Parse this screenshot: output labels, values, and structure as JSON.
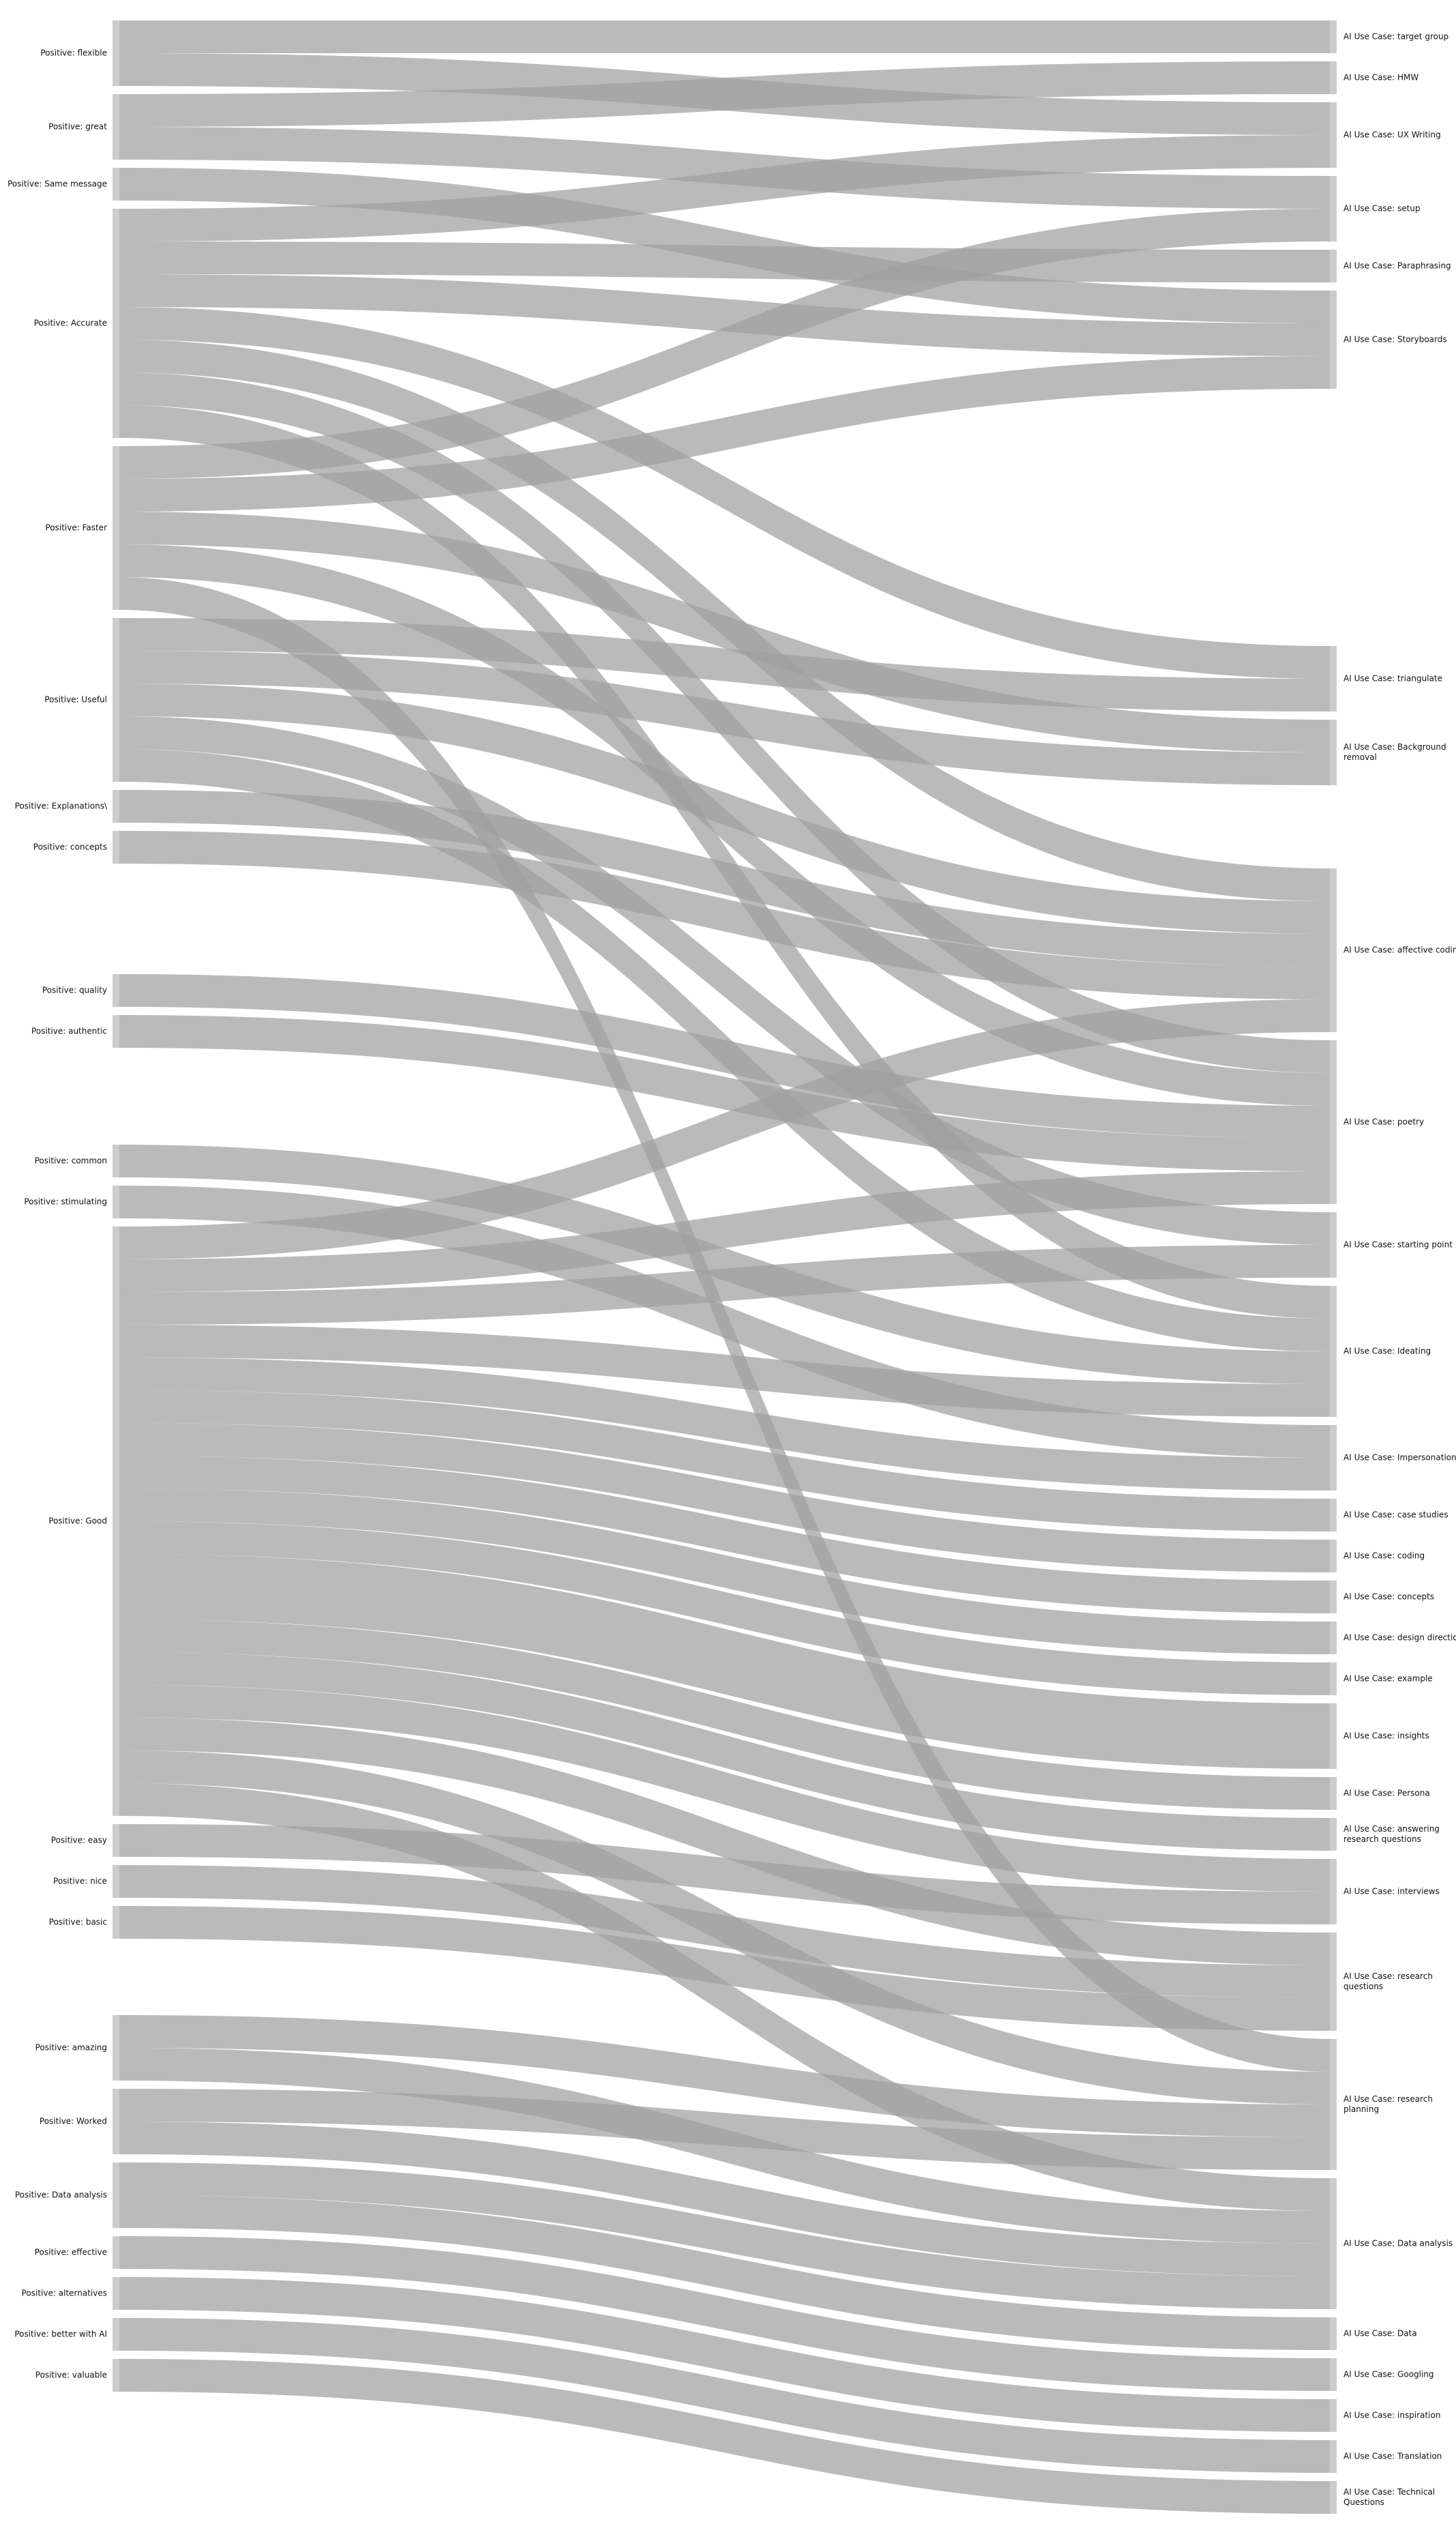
{
  "colors": {
    "node": "#cccccc",
    "link": "#a0a0a0",
    "background": "#ffffff"
  },
  "left_nodes": [
    {
      "id": "flexible",
      "label": "Positive: flexible",
      "value": 2
    },
    {
      "id": "great",
      "label": "Positive: great",
      "value": 2
    },
    {
      "id": "same_message",
      "label": "Positive: Same message",
      "value": 1
    },
    {
      "id": "accurate",
      "label": "Positive: Accurate",
      "value": 7
    },
    {
      "id": "faster",
      "label": "Positive: Faster",
      "value": 5
    },
    {
      "id": "useful",
      "label": "Positive: Useful",
      "value": 5
    },
    {
      "id": "explanations",
      "label": "Positive: Explanations\\",
      "value": 1
    },
    {
      "id": "concepts",
      "label": "Positive: concepts",
      "value": 1
    },
    {
      "id": "quality",
      "label": "Positive: quality",
      "value": 1
    },
    {
      "id": "authentic",
      "label": "Positive: authentic",
      "value": 1
    },
    {
      "id": "common",
      "label": "Positive: common",
      "value": 1
    },
    {
      "id": "stimulating",
      "label": "Positive: stimulating",
      "value": 1
    },
    {
      "id": "good",
      "label": "Positive: Good",
      "value": 18
    },
    {
      "id": "easy",
      "label": "Positive: easy",
      "value": 1
    },
    {
      "id": "nice",
      "label": "Positive: nice",
      "value": 1
    },
    {
      "id": "basic",
      "label": "Positive: basic",
      "value": 1
    },
    {
      "id": "amazing",
      "label": "Positive: amazing",
      "value": 2
    },
    {
      "id": "worked",
      "label": "Positive: Worked",
      "value": 2
    },
    {
      "id": "data_analysis_pos",
      "label": "Positive: Data analysis",
      "value": 2
    },
    {
      "id": "effective",
      "label": "Positive: effective",
      "value": 1
    },
    {
      "id": "alternatives",
      "label": "Positive: alternatives",
      "value": 1
    },
    {
      "id": "better_with_ai",
      "label": "Positive: better with AI",
      "value": 1
    },
    {
      "id": "valuable",
      "label": "Positive: valuable",
      "value": 1
    }
  ],
  "right_nodes": [
    {
      "id": "target_group",
      "label": [
        "AI Use Case: target group"
      ],
      "value": 1
    },
    {
      "id": "hmw",
      "label": [
        "AI Use Case: HMW"
      ],
      "value": 1
    },
    {
      "id": "ux_writing",
      "label": [
        "AI Use Case: UX Writing"
      ],
      "value": 2
    },
    {
      "id": "setup",
      "label": [
        "AI Use Case: setup"
      ],
      "value": 2
    },
    {
      "id": "paraphrasing",
      "label": [
        "AI Use Case: Paraphrasing"
      ],
      "value": 1
    },
    {
      "id": "storyboards",
      "label": [
        "AI Use Case: Storyboards"
      ],
      "value": 3
    },
    {
      "id": "triangulate",
      "label": [
        "AI Use Case: triangulate"
      ],
      "value": 2
    },
    {
      "id": "background_removal",
      "label": [
        "AI Use Case: Background",
        "removal"
      ],
      "value": 2
    },
    {
      "id": "affective_coding",
      "label": [
        "AI Use Case: affective coding"
      ],
      "value": 5
    },
    {
      "id": "poetry",
      "label": [
        "AI Use Case: poetry"
      ],
      "value": 5
    },
    {
      "id": "starting_point",
      "label": [
        "AI Use Case: starting point"
      ],
      "value": 2
    },
    {
      "id": "ideating",
      "label": [
        "AI Use Case: Ideating"
      ],
      "value": 4
    },
    {
      "id": "impersonation",
      "label": [
        "AI Use Case: Impersonation"
      ],
      "value": 2
    },
    {
      "id": "case_studies",
      "label": [
        "AI Use Case: case studies"
      ],
      "value": 1
    },
    {
      "id": "coding",
      "label": [
        "AI Use Case: coding"
      ],
      "value": 1
    },
    {
      "id": "concepts_uc",
      "label": [
        "AI Use Case: concepts"
      ],
      "value": 1
    },
    {
      "id": "design_direction",
      "label": [
        "AI Use Case: design direction"
      ],
      "value": 1
    },
    {
      "id": "example",
      "label": [
        "AI Use Case: example"
      ],
      "value": 1
    },
    {
      "id": "insights",
      "label": [
        "AI Use Case: insights"
      ],
      "value": 2
    },
    {
      "id": "persona",
      "label": [
        "AI Use Case: Persona"
      ],
      "value": 1
    },
    {
      "id": "answering_rq",
      "label": [
        "AI Use Case: answering",
        "research questions"
      ],
      "value": 1
    },
    {
      "id": "interviews",
      "label": [
        "AI Use Case: interviews"
      ],
      "value": 2
    },
    {
      "id": "research_questions",
      "label": [
        "AI Use Case: research",
        "questions"
      ],
      "value": 3
    },
    {
      "id": "research_planning",
      "label": [
        "AI Use Case: research",
        "planning"
      ],
      "value": 4
    },
    {
      "id": "data_analysis_uc",
      "label": [
        "AI Use Case: Data analysis"
      ],
      "value": 4
    },
    {
      "id": "data",
      "label": [
        "AI Use Case: Data"
      ],
      "value": 1
    },
    {
      "id": "googling",
      "label": [
        "AI Use Case: Googling"
      ],
      "value": 1
    },
    {
      "id": "inspiration",
      "label": [
        "AI Use Case: inspiration"
      ],
      "value": 1
    },
    {
      "id": "translation",
      "label": [
        "AI Use Case: Translation"
      ],
      "value": 1
    },
    {
      "id": "technical_questions",
      "label": [
        "AI Use Case: Technical",
        "Questions"
      ],
      "value": 1
    }
  ],
  "links": [
    {
      "source": "flexible",
      "target": "target_group",
      "value": 1
    },
    {
      "source": "flexible",
      "target": "ux_writing",
      "value": 1
    },
    {
      "source": "great",
      "target": "hmw",
      "value": 1
    },
    {
      "source": "great",
      "target": "setup",
      "value": 1
    },
    {
      "source": "same_message",
      "target": "storyboards",
      "value": 1
    },
    {
      "source": "accurate",
      "target": "ux_writing",
      "value": 1
    },
    {
      "source": "accurate",
      "target": "paraphrasing",
      "value": 1
    },
    {
      "source": "accurate",
      "target": "storyboards",
      "value": 1
    },
    {
      "source": "accurate",
      "target": "triangulate",
      "value": 1
    },
    {
      "source": "accurate",
      "target": "affective_coding",
      "value": 1
    },
    {
      "source": "accurate",
      "target": "poetry",
      "value": 1
    },
    {
      "source": "accurate",
      "target": "ideating",
      "value": 1
    },
    {
      "source": "faster",
      "target": "setup",
      "value": 1
    },
    {
      "source": "faster",
      "target": "storyboards",
      "value": 1
    },
    {
      "source": "faster",
      "target": "background_removal",
      "value": 1
    },
    {
      "source": "faster",
      "target": "poetry",
      "value": 1
    },
    {
      "source": "faster",
      "target": "research_planning",
      "value": 1
    },
    {
      "source": "useful",
      "target": "triangulate",
      "value": 1
    },
    {
      "source": "useful",
      "target": "background_removal",
      "value": 1
    },
    {
      "source": "useful",
      "target": "affective_coding",
      "value": 1
    },
    {
      "source": "useful",
      "target": "starting_point",
      "value": 1
    },
    {
      "source": "useful",
      "target": "ideating",
      "value": 1
    },
    {
      "source": "explanations",
      "target": "affective_coding",
      "value": 1
    },
    {
      "source": "concepts",
      "target": "affective_coding",
      "value": 1
    },
    {
      "source": "quality",
      "target": "poetry",
      "value": 1
    },
    {
      "source": "authentic",
      "target": "poetry",
      "value": 1
    },
    {
      "source": "common",
      "target": "ideating",
      "value": 1
    },
    {
      "source": "stimulating",
      "target": "impersonation",
      "value": 1
    },
    {
      "source": "good",
      "target": "affective_coding",
      "value": 1
    },
    {
      "source": "good",
      "target": "poetry",
      "value": 1
    },
    {
      "source": "good",
      "target": "starting_point",
      "value": 1
    },
    {
      "source": "good",
      "target": "ideating",
      "value": 1
    },
    {
      "source": "good",
      "target": "impersonation",
      "value": 1
    },
    {
      "source": "good",
      "target": "case_studies",
      "value": 1
    },
    {
      "source": "good",
      "target": "coding",
      "value": 1
    },
    {
      "source": "good",
      "target": "concepts_uc",
      "value": 1
    },
    {
      "source": "good",
      "target": "design_direction",
      "value": 1
    },
    {
      "source": "good",
      "target": "example",
      "value": 1
    },
    {
      "source": "good",
      "target": "insights",
      "value": 2
    },
    {
      "source": "good",
      "target": "persona",
      "value": 1
    },
    {
      "source": "good",
      "target": "answering_rq",
      "value": 1
    },
    {
      "source": "good",
      "target": "interviews",
      "value": 1
    },
    {
      "source": "good",
      "target": "research_questions",
      "value": 1
    },
    {
      "source": "good",
      "target": "research_planning",
      "value": 1
    },
    {
      "source": "good",
      "target": "data_analysis_uc",
      "value": 1
    },
    {
      "source": "easy",
      "target": "interviews",
      "value": 1
    },
    {
      "source": "nice",
      "target": "research_questions",
      "value": 1
    },
    {
      "source": "basic",
      "target": "research_questions",
      "value": 1
    },
    {
      "source": "amazing",
      "target": "research_planning",
      "value": 1
    },
    {
      "source": "amazing",
      "target": "data_analysis_uc",
      "value": 1
    },
    {
      "source": "worked",
      "target": "research_planning",
      "value": 1
    },
    {
      "source": "worked",
      "target": "data_analysis_uc",
      "value": 1
    },
    {
      "source": "data_analysis_pos",
      "target": "data_analysis_uc",
      "value": 1
    },
    {
      "source": "data_analysis_pos",
      "target": "data",
      "value": 1
    },
    {
      "source": "effective",
      "target": "googling",
      "value": 1
    },
    {
      "source": "alternatives",
      "target": "inspiration",
      "value": 1
    },
    {
      "source": "better_with_ai",
      "target": "translation",
      "value": 1
    },
    {
      "source": "valuable",
      "target": "technical_questions",
      "value": 1
    }
  ]
}
